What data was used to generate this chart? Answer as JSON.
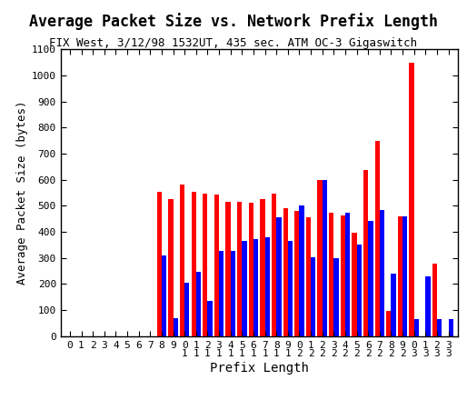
{
  "title": "Average Packet Size vs. Network Prefix Length",
  "subtitle": "FIX West, 3/12/98 1532UT, 435 sec. ATM OC-3 Gigaswitch",
  "xlabel": "Prefix Length",
  "ylabel": "Average Packet Size (bytes)",
  "ylim": [
    0,
    1100
  ],
  "yticks": [
    0,
    100,
    200,
    300,
    400,
    500,
    600,
    700,
    800,
    900,
    1000,
    1100
  ],
  "prefix_lengths": [
    0,
    1,
    2,
    3,
    4,
    5,
    6,
    7,
    8,
    9,
    10,
    11,
    12,
    13,
    14,
    15,
    16,
    17,
    18,
    19,
    20,
    21,
    22,
    23,
    24,
    25,
    26,
    27,
    28,
    29,
    30,
    31,
    32,
    33
  ],
  "red_values": [
    0,
    0,
    0,
    0,
    0,
    0,
    0,
    0,
    553,
    527,
    580,
    553,
    548,
    543,
    515,
    515,
    510,
    525,
    545,
    490,
    480,
    455,
    600,
    473,
    463,
    395,
    637,
    750,
    97,
    460,
    1047,
    0,
    277,
    0
  ],
  "blue_values": [
    0,
    0,
    0,
    0,
    0,
    0,
    0,
    0,
    310,
    68,
    205,
    248,
    137,
    328,
    328,
    365,
    372,
    378,
    455,
    365,
    500,
    301,
    600,
    300,
    472,
    353,
    443,
    483,
    240,
    460,
    65,
    228,
    65,
    65
  ],
  "bar_color_red": "#ff0000",
  "bar_color_blue": "#0000ff",
  "background_color": "#ffffff",
  "title_fontsize": 12,
  "subtitle_fontsize": 9,
  "xlabel_fontsize": 10,
  "ylabel_fontsize": 9,
  "tick_fontsize": 8
}
